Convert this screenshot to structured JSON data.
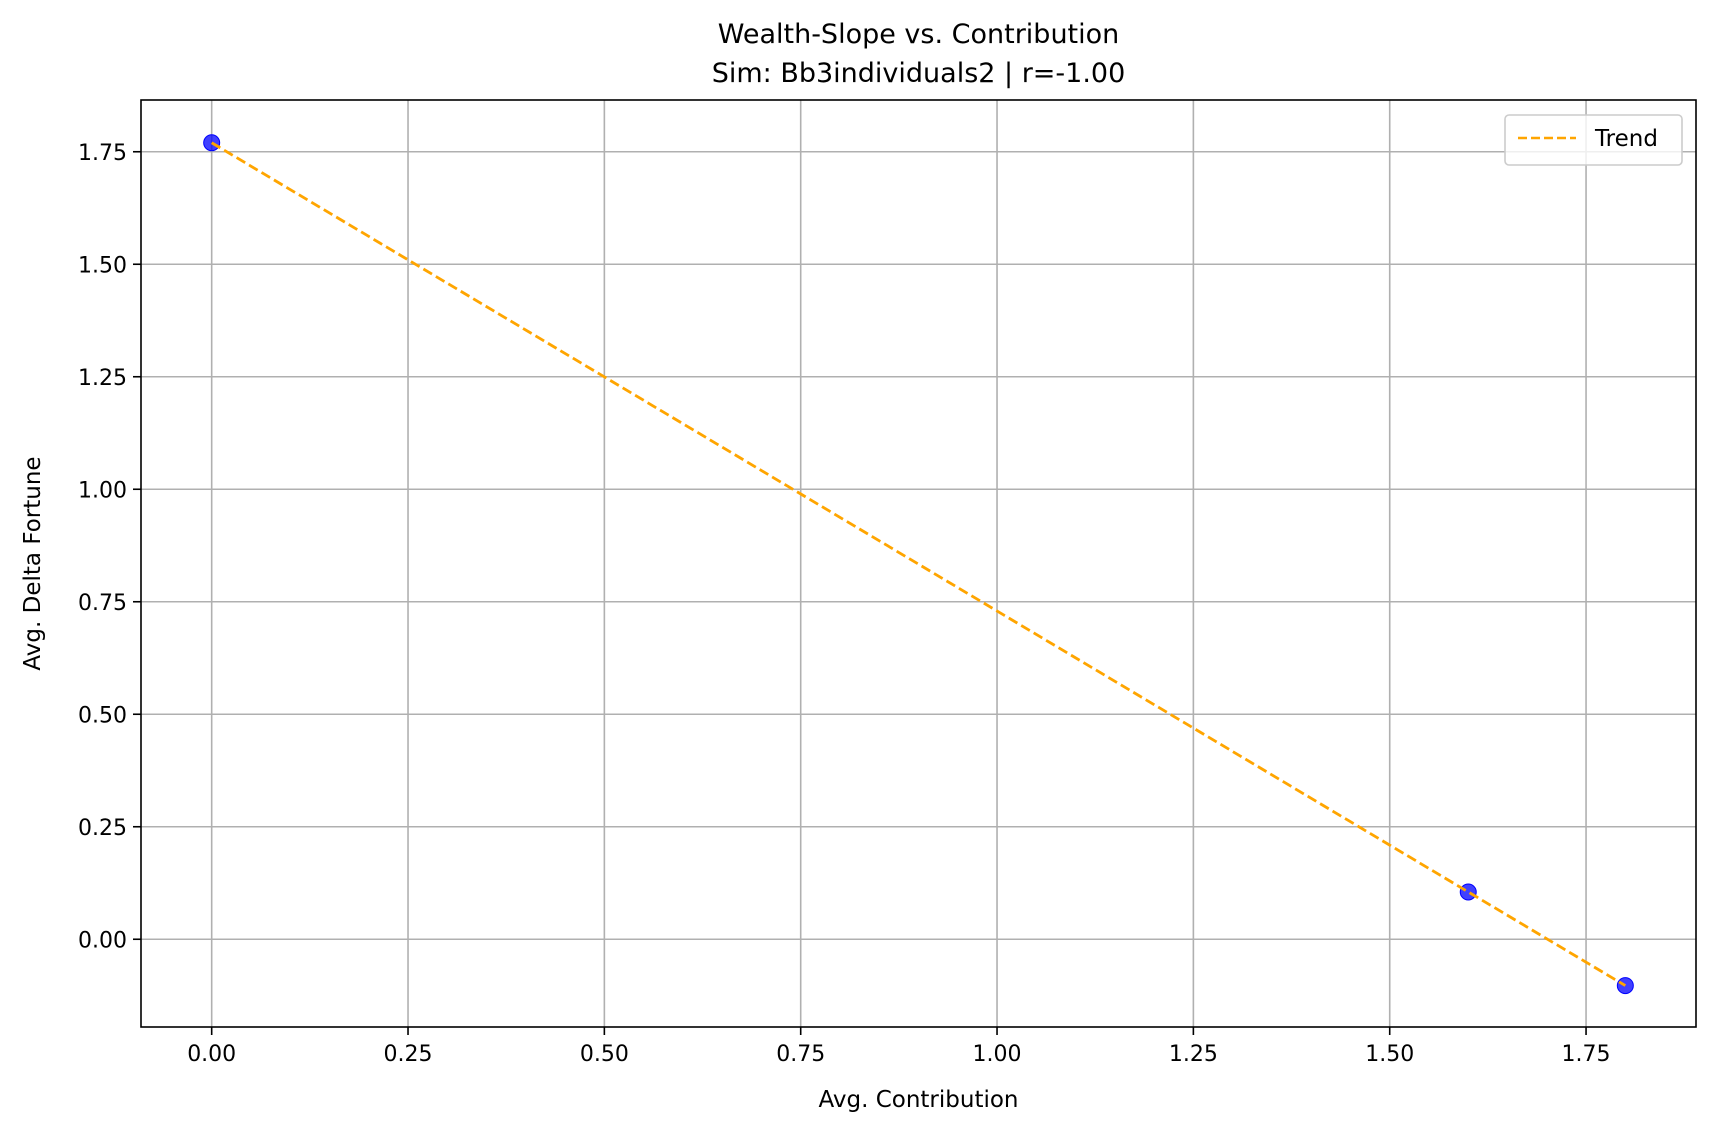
{
  "chart_data": {
    "type": "scatter",
    "title": "Wealth-Slope vs. Contribution",
    "subtitle": "Sim: Bb3individuals2 | r=-1.00",
    "xlabel": "Avg. Contribution",
    "ylabel": "Avg. Delta Fortune",
    "xlim": [
      -0.09,
      1.89
    ],
    "ylim": [
      -0.195,
      1.865
    ],
    "x_ticks": [
      0.0,
      0.25,
      0.5,
      0.75,
      1.0,
      1.25,
      1.5,
      1.75
    ],
    "x_tick_labels": [
      "0.00",
      "0.25",
      "0.50",
      "0.75",
      "1.00",
      "1.25",
      "1.50",
      "1.75"
    ],
    "y_ticks": [
      0.0,
      0.25,
      0.5,
      0.75,
      1.0,
      1.25,
      1.5,
      1.75
    ],
    "y_tick_labels": [
      "0.00",
      "0.25",
      "0.50",
      "0.75",
      "1.00",
      "1.25",
      "1.50",
      "1.75"
    ],
    "grid": true,
    "legend_position": "top-right",
    "series": [
      {
        "kind": "scatter",
        "color": "#0000ff",
        "points": [
          {
            "x": 0.0,
            "y": 1.77
          },
          {
            "x": 1.6,
            "y": 0.105
          },
          {
            "x": 1.8,
            "y": -0.103
          }
        ]
      },
      {
        "kind": "trend",
        "name": "Trend",
        "color": "#ffa500",
        "style": "dashed",
        "points": [
          {
            "x": 0.0,
            "y": 1.77
          },
          {
            "x": 1.8,
            "y": -0.103
          }
        ]
      }
    ]
  }
}
